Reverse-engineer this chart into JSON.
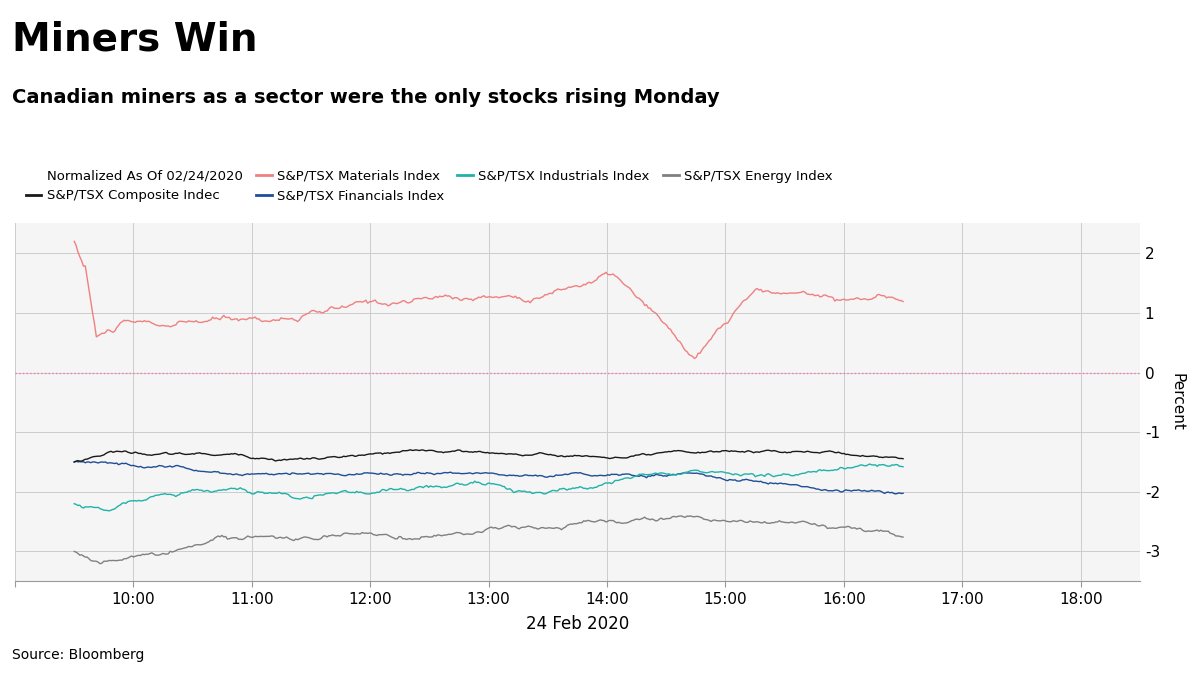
{
  "title": "Miners Win",
  "subtitle": "Canadian miners as a sector were the only stocks rising Monday",
  "legend_label": "Normalized As Of 02/24/2020",
  "source": "Source: Bloomberg",
  "xlabel": "24 Feb 2020",
  "ylabel": "Percent",
  "ylim": [
    -3.5,
    2.5
  ],
  "yticks": [
    -3,
    -2,
    -1,
    0,
    1,
    2
  ],
  "xlim_start": 9.0,
  "xlim_end": 18.5,
  "xticks": [
    9,
    10,
    11,
    12,
    13,
    14,
    15,
    16,
    17,
    18
  ],
  "xtick_labels": [
    "",
    "10:00",
    "11:00",
    "12:00",
    "13:00",
    "14:00",
    "15:00",
    "16:00",
    "17:00",
    "18:00"
  ],
  "background_color": "#ffffff",
  "plot_bg_color": "#f5f5f5",
  "grid_color": "#cccccc",
  "zero_line_color": "#ff69b4",
  "series": {
    "composite": {
      "label": "S&P/TSX Composite Indec",
      "color": "#1a1a1a"
    },
    "materials": {
      "label": "S&P/TSX Materials Index",
      "color": "#f08080"
    },
    "financials": {
      "label": "S&P/TSX Financials Index",
      "color": "#1f4e96"
    },
    "industrials": {
      "label": "S&P/TSX Industrials Index",
      "color": "#20b2aa"
    },
    "energy": {
      "label": "S&P/TSX Energy Index",
      "color": "#808080"
    }
  }
}
